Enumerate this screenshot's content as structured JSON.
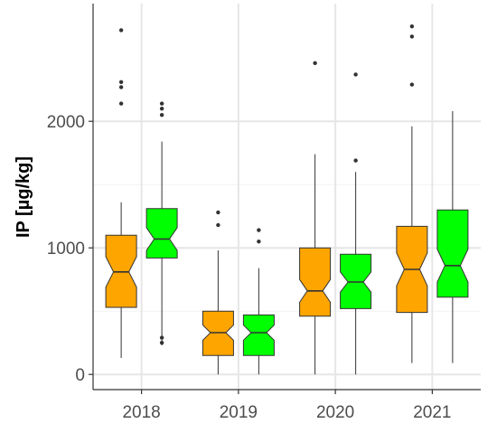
{
  "chart_data": {
    "type": "boxplot",
    "notched": true,
    "title": "",
    "xlabel": "",
    "ylabel": "IP [µg/kg]",
    "categories": [
      "2018",
      "2019",
      "2020",
      "2021"
    ],
    "ylim": [
      -120,
      2930
    ],
    "yticks": [
      0,
      1000,
      2000
    ],
    "ytick_labels": [
      "0",
      "1000",
      "2000"
    ],
    "grid": true,
    "legend": "none",
    "series": [
      {
        "color": "#FFA500",
        "boxes": [
          {
            "whisker_low": 130,
            "q1": 530,
            "median": 810,
            "q3": 1100,
            "whisker_high": 1360,
            "notch": [
              690,
              930
            ],
            "outliers": [
              2140,
              2270,
              2310,
              2720
            ]
          },
          {
            "whisker_low": 0,
            "q1": 150,
            "median": 330,
            "q3": 500,
            "whisker_high": 980,
            "notch": [
              270,
              390
            ],
            "outliers": [
              1180,
              1280
            ]
          },
          {
            "whisker_low": 0,
            "q1": 460,
            "median": 660,
            "q3": 1000,
            "whisker_high": 1740,
            "notch": [
              570,
              750
            ],
            "outliers": [
              2460
            ]
          },
          {
            "whisker_low": 90,
            "q1": 490,
            "median": 830,
            "q3": 1170,
            "whisker_high": 1960,
            "notch": [
              700,
              960
            ],
            "outliers": [
              2290,
              2670,
              2750
            ]
          }
        ]
      },
      {
        "color": "#00FF00",
        "boxes": [
          {
            "whisker_low": 230,
            "q1": 920,
            "median": 1070,
            "q3": 1310,
            "whisker_high": 1840,
            "notch": [
              980,
              1160
            ],
            "outliers": [
              250,
              290,
              2050,
              2100,
              2140
            ]
          },
          {
            "whisker_low": 0,
            "q1": 150,
            "median": 330,
            "q3": 470,
            "whisker_high": 840,
            "notch": [
              270,
              390
            ],
            "outliers": [
              1050,
              1140
            ]
          },
          {
            "whisker_low": 0,
            "q1": 520,
            "median": 730,
            "q3": 950,
            "whisker_high": 1600,
            "notch": [
              650,
              810
            ],
            "outliers": [
              1690,
              2370
            ]
          },
          {
            "whisker_low": 90,
            "q1": 610,
            "median": 860,
            "q3": 1300,
            "whisker_high": 2080,
            "notch": [
              730,
              990
            ],
            "outliers": []
          }
        ]
      }
    ]
  }
}
